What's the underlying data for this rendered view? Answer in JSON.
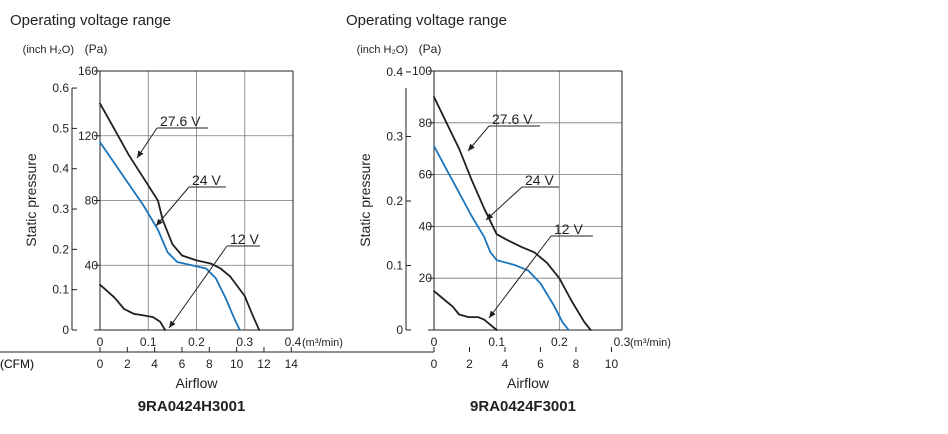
{
  "chart_data": [
    {
      "type": "line",
      "title": "Operating voltage range",
      "model": "9RA0424H3001",
      "xlabel": "Airflow",
      "ylabel": "Static pressure",
      "x_unit_top": "(m³/min)",
      "x_unit_bottom": "(CFM)",
      "y_unit_left": "(inch H₂O)",
      "y_unit_right": "(Pa)",
      "x_ticks_m3min": [
        "0",
        "0.1",
        "0.2",
        "0.3",
        "0.4"
      ],
      "x_ticks_cfm": [
        "0",
        "2",
        "4",
        "6",
        "8",
        "10",
        "12",
        "14"
      ],
      "y_ticks_inch": [
        "0",
        "0.1",
        "0.2",
        "0.3",
        "0.4",
        "0.5",
        "0.6"
      ],
      "y_ticks_pa": [
        "40",
        "80",
        "120",
        "160"
      ],
      "xlim": [
        0,
        0.4
      ],
      "ylim_pa": [
        0,
        160
      ],
      "grid": true,
      "series": [
        {
          "name": "27.6 V",
          "color": "#231f20",
          "x": [
            0,
            0.03,
            0.06,
            0.09,
            0.12,
            0.13,
            0.15,
            0.17,
            0.2,
            0.23,
            0.25,
            0.27,
            0.3,
            0.315,
            0.33
          ],
          "y": [
            140,
            124,
            108,
            94,
            80,
            68,
            53,
            46,
            43,
            41,
            38,
            33,
            21,
            10,
            0
          ]
        },
        {
          "name": "24 V",
          "color": "#1a75bc",
          "x": [
            0,
            0.03,
            0.06,
            0.09,
            0.12,
            0.14,
            0.16,
            0.19,
            0.22,
            0.24,
            0.26,
            0.28,
            0.29
          ],
          "y": [
            116,
            103,
            90,
            77,
            62,
            48,
            42,
            40,
            38,
            32,
            20,
            6,
            0
          ]
        },
        {
          "name": "12 V",
          "color": "#231f20",
          "x": [
            0,
            0.03,
            0.05,
            0.07,
            0.09,
            0.11,
            0.125,
            0.135
          ],
          "y": [
            28,
            20,
            13,
            10,
            9,
            8,
            5,
            0
          ]
        }
      ],
      "curve_labels": [
        "27.6 V",
        "24 V",
        "12 V"
      ]
    },
    {
      "type": "line",
      "title": "Operating voltage range",
      "model": "9RA0424F3001",
      "xlabel": "Airflow",
      "ylabel": "Static pressure",
      "x_unit_top": "(m³/min)",
      "x_unit_bottom": "(CFM)",
      "y_unit_left": "(inch H₂O)",
      "y_unit_right": "(Pa)",
      "x_ticks_m3min": [
        "0",
        "0.1",
        "0.2",
        "0.3"
      ],
      "x_ticks_cfm": [
        "0",
        "2",
        "4",
        "6",
        "8",
        "10"
      ],
      "y_ticks_inch": [
        "0",
        "0.1",
        "0.2",
        "0.3",
        "0.4"
      ],
      "y_ticks_pa": [
        "20",
        "40",
        "60",
        "80",
        "100"
      ],
      "xlim": [
        0,
        0.3
      ],
      "ylim_pa": [
        0,
        100
      ],
      "grid": true,
      "series": [
        {
          "name": "27.6 V",
          "color": "#231f20",
          "x": [
            0,
            0.02,
            0.04,
            0.06,
            0.08,
            0.1,
            0.115,
            0.14,
            0.16,
            0.18,
            0.2,
            0.22,
            0.24,
            0.25
          ],
          "y": [
            90,
            80,
            70,
            58,
            47,
            37,
            35,
            32,
            30,
            26,
            20,
            11,
            3,
            0
          ]
        },
        {
          "name": "24 V",
          "color": "#1a75bc",
          "x": [
            0,
            0.02,
            0.04,
            0.06,
            0.08,
            0.09,
            0.1,
            0.13,
            0.15,
            0.17,
            0.19,
            0.205,
            0.215
          ],
          "y": [
            71,
            62,
            53,
            44,
            36,
            30,
            27,
            25,
            23,
            18,
            10,
            3,
            0
          ]
        },
        {
          "name": "12 V",
          "color": "#231f20",
          "x": [
            0,
            0.02,
            0.03,
            0.04,
            0.055,
            0.07,
            0.08,
            0.09,
            0.1
          ],
          "y": [
            15,
            11,
            9,
            6,
            5,
            5,
            4,
            2,
            0
          ]
        }
      ],
      "curve_labels": [
        "27.6 V",
        "24 V",
        "12 V"
      ]
    }
  ]
}
